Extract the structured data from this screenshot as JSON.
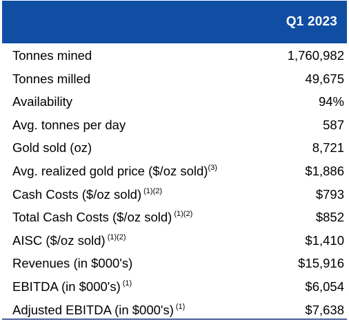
{
  "header": {
    "column": "Q1 2023"
  },
  "rows": [
    {
      "label": "Tonnes mined",
      "sup": "",
      "value": "1,760,982"
    },
    {
      "label": "Tonnes milled",
      "sup": "",
      "value": "49,675"
    },
    {
      "label": "Availability",
      "sup": "",
      "value": "94%"
    },
    {
      "label": "Avg. tonnes per day",
      "sup": "",
      "value": "587"
    },
    {
      "label": "Gold sold (oz)",
      "sup": "",
      "value": "8,721"
    },
    {
      "label": "Avg. realized gold price ($/oz sold)",
      "sup": "(3)",
      "value": "$1,886"
    },
    {
      "label": "Cash Costs ($/oz sold)",
      "sup": "(1)(2)",
      "value": "$793"
    },
    {
      "label": "Total Cash Costs ($/oz sold)",
      "sup": "(1)(2)",
      "value": "$852"
    },
    {
      "label": "AISC ($/oz sold)",
      "sup": "(1)(2)",
      "value": "$1,410"
    },
    {
      "label": "Revenues (in $000's)",
      "sup": "",
      "value": "$15,916"
    },
    {
      "label": "EBITDA (in $000's)",
      "sup": "(1)",
      "value": "$6,054"
    },
    {
      "label": "Adjusted EBITDA (in $000's)",
      "sup": "(1)",
      "value": "$7,638"
    }
  ],
  "colors": {
    "header_bg": "#0f4ea3",
    "header_text": "#ffffff",
    "bottom_rule": "#4a5f9a"
  }
}
